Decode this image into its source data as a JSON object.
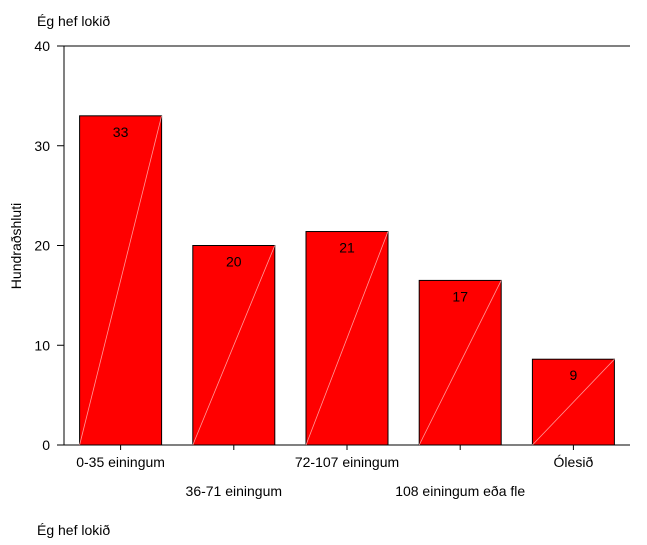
{
  "chart_data": {
    "type": "bar",
    "title": "Ég hef lokið",
    "xlabel": "Ég hef lokið",
    "ylabel": "Hundraðshluti",
    "categories": [
      "0-35 einingum",
      "36-71 einingum",
      "72-107 einingum",
      "108 einingum eða fle",
      "Ólesið"
    ],
    "values": [
      33,
      20,
      21.4,
      16.5,
      8.6
    ],
    "data_labels": [
      "33",
      "20",
      "21",
      "17",
      "9"
    ],
    "ylim": [
      0,
      40
    ],
    "yticks": [
      0,
      10,
      20,
      30,
      40
    ],
    "grid": false,
    "legend": "none",
    "colors": {
      "bar_fill": "#ff0000",
      "bar_stroke": "#000000",
      "bar_diagonal": "#ff9a9a",
      "axis": "#000000",
      "background": "#ffffff"
    }
  }
}
